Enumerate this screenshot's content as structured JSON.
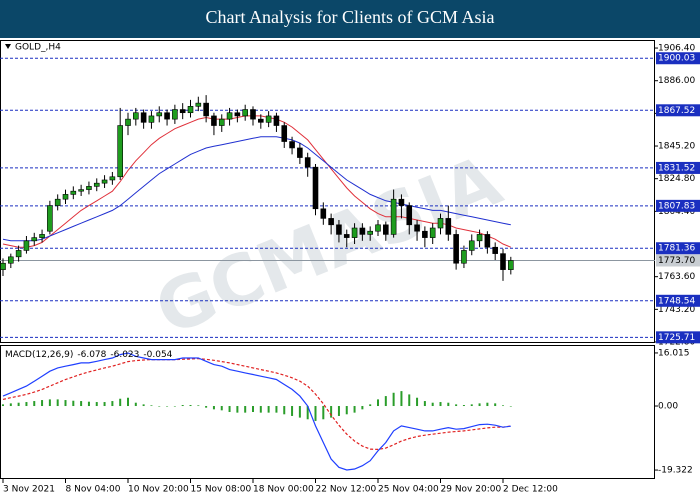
{
  "header": {
    "title": "Chart Analysis for Clients of GCM Asia"
  },
  "watermark": "GCMASIA",
  "chart_data": [
    {
      "type": "candlestick",
      "label": "GOLD_,H4",
      "open": [
        1768,
        1772,
        1776,
        1780,
        1786,
        1788,
        1792,
        1808,
        1812,
        1815,
        1817,
        1818,
        1820,
        1822,
        1824,
        1826,
        1858,
        1862,
        1866,
        1860,
        1864,
        1866,
        1862,
        1868,
        1866,
        1870,
        1872,
        1864,
        1858,
        1862,
        1866,
        1864,
        1868,
        1862,
        1860,
        1864,
        1858,
        1848,
        1844,
        1838,
        1832,
        1806,
        1800,
        1796,
        1790,
        1788,
        1794,
        1790,
        1792,
        1796,
        1790,
        1812,
        1808,
        1796,
        1792,
        1788,
        1794,
        1800,
        1790,
        1772,
        1780,
        1786,
        1790,
        1782,
        1778,
        1768
      ],
      "high": [
        1775,
        1778,
        1783,
        1789,
        1791,
        1793,
        1811,
        1815,
        1818,
        1820,
        1821,
        1823,
        1825,
        1827,
        1829,
        1869,
        1866,
        1869,
        1868,
        1867,
        1870,
        1868,
        1871,
        1872,
        1874,
        1876,
        1877,
        1866,
        1865,
        1869,
        1868,
        1871,
        1870,
        1865,
        1867,
        1866,
        1860,
        1851,
        1847,
        1841,
        1834,
        1810,
        1803,
        1799,
        1793,
        1797,
        1797,
        1795,
        1799,
        1798,
        1818,
        1815,
        1810,
        1799,
        1795,
        1797,
        1803,
        1808,
        1793,
        1783,
        1790,
        1793,
        1792,
        1785,
        1781,
        1776
      ],
      "low": [
        1764,
        1769,
        1773,
        1778,
        1783,
        1785,
        1790,
        1805,
        1809,
        1812,
        1814,
        1815,
        1817,
        1819,
        1821,
        1824,
        1852,
        1858,
        1856,
        1856,
        1860,
        1858,
        1859,
        1862,
        1863,
        1867,
        1860,
        1852,
        1854,
        1858,
        1860,
        1861,
        1858,
        1856,
        1857,
        1854,
        1844,
        1840,
        1834,
        1826,
        1802,
        1796,
        1790,
        1785,
        1782,
        1784,
        1786,
        1786,
        1789,
        1786,
        1788,
        1800,
        1790,
        1786,
        1782,
        1784,
        1790,
        1786,
        1768,
        1769,
        1777,
        1782,
        1778,
        1774,
        1761,
        1765
      ],
      "close": [
        1772,
        1776,
        1780,
        1786,
        1788,
        1790,
        1808,
        1812,
        1815,
        1817,
        1818,
        1820,
        1822,
        1824,
        1826,
        1858,
        1862,
        1866,
        1860,
        1864,
        1866,
        1862,
        1868,
        1866,
        1870,
        1872,
        1864,
        1858,
        1862,
        1866,
        1864,
        1868,
        1862,
        1860,
        1864,
        1858,
        1848,
        1844,
        1838,
        1832,
        1806,
        1800,
        1796,
        1790,
        1788,
        1794,
        1790,
        1792,
        1796,
        1790,
        1812,
        1808,
        1796,
        1792,
        1788,
        1794,
        1800,
        1790,
        1772,
        1780,
        1786,
        1790,
        1782,
        1778,
        1768,
        1773.7
      ],
      "bull_color": "#1e9c1e",
      "bear_color": "#000000",
      "ma": [
        {
          "color": "#e0303a",
          "values": [
            1784,
            1783,
            1782,
            1782,
            1783,
            1785,
            1789,
            1793,
            1797,
            1801,
            1805,
            1808,
            1811,
            1814,
            1817,
            1823,
            1830,
            1836,
            1841,
            1846,
            1850,
            1853,
            1856,
            1858,
            1860,
            1862,
            1863,
            1862,
            1862,
            1862,
            1863,
            1864,
            1864,
            1864,
            1863,
            1862,
            1860,
            1857,
            1853,
            1849,
            1843,
            1837,
            1831,
            1825,
            1819,
            1814,
            1810,
            1806,
            1803,
            1801,
            1801,
            1801,
            1800,
            1799,
            1798,
            1797,
            1797,
            1796,
            1794,
            1793,
            1792,
            1791,
            1789,
            1787,
            1784,
            1782
          ]
        },
        {
          "color": "#2030d0",
          "values": [
            1787,
            1786,
            1786,
            1786,
            1786,
            1787,
            1789,
            1791,
            1793,
            1795,
            1797,
            1799,
            1801,
            1803,
            1805,
            1808,
            1812,
            1816,
            1820,
            1824,
            1828,
            1831,
            1834,
            1837,
            1840,
            1842,
            1844,
            1845,
            1846,
            1847,
            1848,
            1849,
            1850,
            1851,
            1851,
            1851,
            1850,
            1849,
            1847,
            1844,
            1840,
            1836,
            1832,
            1828,
            1824,
            1821,
            1818,
            1815,
            1813,
            1811,
            1810,
            1809,
            1808,
            1807,
            1806,
            1805,
            1805,
            1804,
            1803,
            1802,
            1801,
            1800,
            1799,
            1798,
            1797,
            1796
          ]
        }
      ],
      "levels": [
        1900.03,
        1867.52,
        1831.52,
        1807.83,
        1781.36,
        1748.54,
        1725.71
      ],
      "level_color": "#1a2fc0",
      "current_price": {
        "value": 1773.7,
        "label": "1773.70"
      },
      "xlim": [
        -0.384,
        83.456
      ],
      "ylim": [
        1722.8,
        1910.8
      ],
      "yticks": [
        {
          "value": 1906.4,
          "label": "1906.40"
        },
        {
          "value": 1886,
          "label": "1886.00"
        },
        {
          "value": 1865.6,
          "label": "1865.60"
        },
        {
          "value": 1845.2,
          "label": "1845.20"
        },
        {
          "value": 1824.8,
          "label": "1824.80"
        },
        {
          "value": 1804.4,
          "label": "1804.40"
        },
        {
          "value": 1763.6,
          "label": "1763.60"
        },
        {
          "value": 1743.2,
          "label": "1743.20"
        },
        {
          "value": 1722.8,
          "label": "1722.80"
        }
      ],
      "xticks": [
        {
          "value": 0,
          "label": "3 Nov 2021"
        },
        {
          "value": 8,
          "label": "8 Nov 04:00"
        },
        {
          "value": 16,
          "label": "10 Nov 20:00"
        },
        {
          "value": 24,
          "label": "15 Nov 08:00"
        },
        {
          "value": 32,
          "label": "18 Nov 00:00"
        },
        {
          "value": 40,
          "label": "22 Nov 12:00"
        },
        {
          "value": 48,
          "label": "25 Nov 04:00"
        },
        {
          "value": 56,
          "label": "29 Nov 20:00"
        },
        {
          "value": 64,
          "label": "2 Dec 12:00"
        }
      ]
    },
    {
      "type": "macd",
      "label": "MACD(12,26,9)",
      "series": [
        {
          "color": "#1f3fff",
          "values": [
            3,
            4,
            5,
            6,
            7.5,
            9,
            10.5,
            11.5,
            12,
            12.5,
            13,
            13,
            13.5,
            14,
            14.5,
            15.5,
            16,
            15,
            14.5,
            14,
            14,
            14,
            14,
            14.5,
            14.5,
            14.5,
            13.5,
            12.5,
            12,
            11,
            10.5,
            10,
            9.5,
            9,
            8.5,
            8,
            6.5,
            5,
            3,
            0,
            -6,
            -11,
            -16,
            -18.5,
            -19.3,
            -19,
            -18,
            -16.5,
            -13.5,
            -11,
            -7.5,
            -6,
            -6.5,
            -7,
            -7.5,
            -7.5,
            -7,
            -6.5,
            -7,
            -6.8,
            -6.2,
            -5.6,
            -5.5,
            -5.8,
            -6.4,
            -6.078
          ]
        },
        {
          "color": "#e02020",
          "values": [
            2,
            2.5,
            3,
            3.5,
            4.2,
            5,
            6,
            7,
            8,
            8.8,
            9.6,
            10.3,
            10.9,
            11.5,
            12,
            12.7,
            13.4,
            13.7,
            13.9,
            14,
            14,
            14,
            14,
            14.1,
            14.2,
            14.3,
            14.1,
            13.8,
            13.4,
            13,
            12.5,
            12,
            11.5,
            11,
            10.5,
            10,
            9.3,
            8.5,
            7.5,
            6,
            3.6,
            0.7,
            -2.7,
            -5.8,
            -8.5,
            -10.6,
            -12.1,
            -13,
            -13.1,
            -12.7,
            -11.7,
            -10.6,
            -9.8,
            -9.2,
            -8.8,
            -8.5,
            -8.2,
            -7.9,
            -7.7,
            -7.5,
            -7.2,
            -6.9,
            -6.6,
            -6.4,
            -6.4,
            -6.023
          ]
        },
        {
          "color": "#2a9d2a",
          "values": [
            0.5,
            0.8,
            1,
            1.2,
            1.5,
            1.8,
            2,
            2,
            1.8,
            1.6,
            1.5,
            1.3,
            1.2,
            1.2,
            1.5,
            2.2,
            2.5,
            1,
            0.5,
            0.2,
            0,
            0,
            0,
            0.3,
            0.3,
            0.2,
            -0.5,
            -1,
            -1.3,
            -1.8,
            -2,
            -2,
            -1.8,
            -2,
            -2,
            -2,
            -2.5,
            -3,
            -3.5,
            -4,
            -4.5,
            -4,
            -3.5,
            -3,
            -2.5,
            -2,
            -1,
            0.5,
            2,
            3,
            4,
            4.5,
            3.5,
            2.5,
            1.5,
            1,
            1.2,
            1,
            0.5,
            0.3,
            0.5,
            0.8,
            1,
            0.8,
            0.2,
            -0.054
          ]
        }
      ],
      "xlim": [
        -0.384,
        83.456
      ],
      "ylim": [
        -21.72,
        18.11
      ],
      "yticks": [
        16.015,
        {
          "value": 0,
          "label": "0.00"
        },
        -19.322
      ]
    }
  ]
}
